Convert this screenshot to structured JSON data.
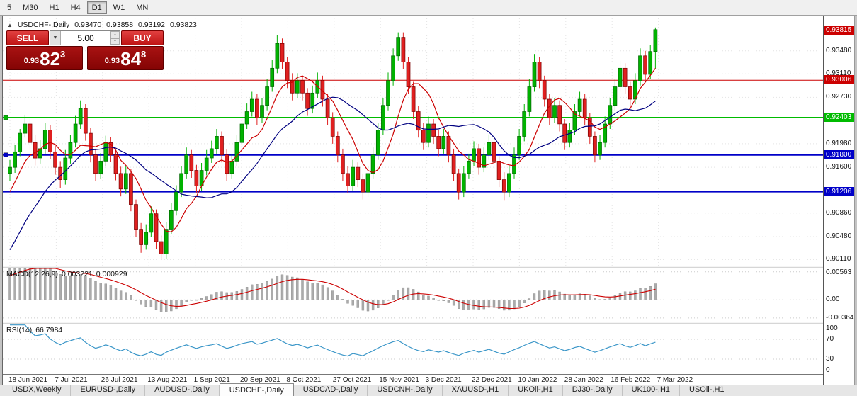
{
  "icons": {
    "collapse": "▲",
    "chevron_down": "▼",
    "spinner_up": "▲",
    "spinner_down": "▼"
  },
  "toolbar": {
    "items": [
      {
        "label": "5",
        "active": false
      },
      {
        "label": "M30",
        "active": false
      },
      {
        "label": "H1",
        "active": false
      },
      {
        "label": "H4",
        "active": false
      },
      {
        "label": "D1",
        "active": true
      },
      {
        "label": "W1",
        "active": false
      },
      {
        "label": "MN",
        "active": false
      }
    ]
  },
  "chart_header": {
    "symbol": "USDCHF-,Daily",
    "open": "0.93470",
    "high": "0.93858",
    "low": "0.93192",
    "close": "0.93823"
  },
  "trade_panel": {
    "sell_label": "SELL",
    "buy_label": "BUY",
    "volume": "5.00",
    "sell_price": {
      "prefix": "0.93",
      "big": "82",
      "sup": "3"
    },
    "buy_price": {
      "prefix": "0.93",
      "big": "84",
      "sup": "8"
    }
  },
  "bottom_tabs": {
    "tabs": [
      {
        "label": "USDX,Weekly",
        "active": false
      },
      {
        "label": "EURUSD-,Daily",
        "active": false
      },
      {
        "label": "AUDUSD-,Daily",
        "active": false
      },
      {
        "label": "USDCHF-,Daily",
        "active": true
      },
      {
        "label": "USDCAD-,Daily",
        "active": false
      },
      {
        "label": "USDCNH-,Daily",
        "active": false
      },
      {
        "label": "XAUUSD-,H1",
        "active": false
      },
      {
        "label": "UKOil-,H1",
        "active": false
      },
      {
        "label": "DJ30-,Daily",
        "active": false
      },
      {
        "label": "UK100-,H1",
        "active": false
      },
      {
        "label": "USOil-,H1",
        "active": false
      }
    ]
  },
  "chart_data": {
    "type": "candlestick",
    "symbol": "USDCHF-",
    "timeframe": "Daily",
    "ohlc_current": {
      "open": 0.9347,
      "high": 0.93858,
      "low": 0.93192,
      "close": 0.93823
    },
    "style": {
      "up_color": "#00b200",
      "up_border": "#006600",
      "down_color": "#e02020",
      "down_border": "#7a0000",
      "grid_color": "#e4e4e4"
    },
    "price_axis": {
      "ylim": [
        0.9,
        0.9405
      ],
      "ticks": [
        0.9348,
        0.9311,
        0.9273,
        0.9198,
        0.916,
        0.9086,
        0.9048,
        0.9011
      ]
    },
    "levels": [
      {
        "price": 0.93815,
        "label": "0.93815",
        "color": "#cc0000",
        "width": 1,
        "edge_marker": false
      },
      {
        "price": 0.93006,
        "label": "0.93006",
        "color": "#cc0000",
        "width": 1,
        "edge_marker": false
      },
      {
        "price": 0.92403,
        "label": "0.92403",
        "color": "#00bb00",
        "width": 2,
        "edge_marker": true
      },
      {
        "price": 0.918,
        "label": "0.91800",
        "color": "#0000c8",
        "width": 2,
        "edge_marker": true
      },
      {
        "price": 0.91206,
        "label": "0.91206",
        "color": "#0000c8",
        "width": 2,
        "edge_marker": false
      }
    ],
    "x_axis_dates": [
      "18 Jun 2021",
      "7 Jul 2021",
      "26 Jul 2021",
      "13 Aug 2021",
      "1 Sep 2021",
      "20 Sep 2021",
      "8 Oct 2021",
      "27 Oct 2021",
      "15 Nov 2021",
      "3 Dec 2021",
      "22 Dec 2021",
      "10 Jan 2022",
      "28 Jan 2022",
      "16 Feb 2022",
      "7 Mar 2022"
    ],
    "moving_averages": [
      {
        "period": 8,
        "color": "#cc0000"
      },
      {
        "period": 20,
        "color": "#000080"
      }
    ],
    "ma_seed_closes": [
      0.89,
      0.8905,
      0.8912,
      0.892,
      0.893,
      0.8942,
      0.8955,
      0.8968,
      0.898,
      0.8992,
      0.9005,
      0.902,
      0.904,
      0.906,
      0.908,
      0.91,
      0.912,
      0.914,
      0.915,
      0.9155
    ],
    "candles": [
      [
        0.915,
        0.9172,
        0.9138,
        0.916
      ],
      [
        0.916,
        0.9196,
        0.9151,
        0.9185
      ],
      [
        0.9185,
        0.9222,
        0.9178,
        0.9215
      ],
      [
        0.9215,
        0.9245,
        0.9208,
        0.923
      ],
      [
        0.923,
        0.9238,
        0.9188,
        0.92
      ],
      [
        0.92,
        0.9212,
        0.9163,
        0.9175
      ],
      [
        0.9175,
        0.9204,
        0.9166,
        0.919
      ],
      [
        0.919,
        0.9232,
        0.9182,
        0.922
      ],
      [
        0.922,
        0.9228,
        0.9173,
        0.9185
      ],
      [
        0.9185,
        0.9195,
        0.9148,
        0.916
      ],
      [
        0.916,
        0.917,
        0.9126,
        0.914
      ],
      [
        0.914,
        0.9188,
        0.9132,
        0.9175
      ],
      [
        0.9175,
        0.9212,
        0.9166,
        0.92
      ],
      [
        0.92,
        0.9243,
        0.9192,
        0.923
      ],
      [
        0.923,
        0.9268,
        0.9222,
        0.9255
      ],
      [
        0.9255,
        0.9262,
        0.9203,
        0.9215
      ],
      [
        0.9215,
        0.9224,
        0.9168,
        0.918
      ],
      [
        0.918,
        0.919,
        0.9138,
        0.915
      ],
      [
        0.915,
        0.9183,
        0.9142,
        0.917
      ],
      [
        0.917,
        0.9211,
        0.9162,
        0.92
      ],
      [
        0.92,
        0.9209,
        0.9169,
        0.918
      ],
      [
        0.918,
        0.9188,
        0.9139,
        0.915
      ],
      [
        0.915,
        0.9161,
        0.9113,
        0.9125
      ],
      [
        0.9125,
        0.9162,
        0.9117,
        0.915
      ],
      [
        0.915,
        0.9157,
        0.9089,
        0.91
      ],
      [
        0.91,
        0.9108,
        0.9047,
        0.906
      ],
      [
        0.906,
        0.907,
        0.9022,
        0.9035
      ],
      [
        0.9035,
        0.9068,
        0.9027,
        0.9055
      ],
      [
        0.9055,
        0.9097,
        0.9047,
        0.9085
      ],
      [
        0.9085,
        0.9092,
        0.9028,
        0.904
      ],
      [
        0.904,
        0.905,
        0.9012,
        0.902
      ],
      [
        0.902,
        0.9072,
        0.9012,
        0.906
      ],
      [
        0.906,
        0.9102,
        0.9052,
        0.909
      ],
      [
        0.909,
        0.9131,
        0.9082,
        0.912
      ],
      [
        0.912,
        0.9162,
        0.9112,
        0.915
      ],
      [
        0.915,
        0.9192,
        0.9142,
        0.918
      ],
      [
        0.918,
        0.9188,
        0.9143,
        0.9155
      ],
      [
        0.9155,
        0.9164,
        0.9118,
        0.913
      ],
      [
        0.913,
        0.9167,
        0.9122,
        0.9155
      ],
      [
        0.9155,
        0.9188,
        0.9147,
        0.9175
      ],
      [
        0.9175,
        0.9203,
        0.9167,
        0.919
      ],
      [
        0.919,
        0.9222,
        0.9182,
        0.921
      ],
      [
        0.921,
        0.9218,
        0.9168,
        0.918
      ],
      [
        0.918,
        0.9189,
        0.9138,
        0.915
      ],
      [
        0.915,
        0.9182,
        0.9142,
        0.917
      ],
      [
        0.917,
        0.9212,
        0.9162,
        0.92
      ],
      [
        0.92,
        0.9242,
        0.9192,
        0.923
      ],
      [
        0.923,
        0.9263,
        0.9222,
        0.925
      ],
      [
        0.925,
        0.9282,
        0.9242,
        0.927
      ],
      [
        0.927,
        0.9278,
        0.9228,
        0.924
      ],
      [
        0.924,
        0.9272,
        0.9232,
        0.926
      ],
      [
        0.926,
        0.9302,
        0.9252,
        0.929
      ],
      [
        0.929,
        0.9333,
        0.9282,
        0.932
      ],
      [
        0.932,
        0.9373,
        0.9312,
        0.936
      ],
      [
        0.936,
        0.9368,
        0.9318,
        0.933
      ],
      [
        0.933,
        0.9338,
        0.9288,
        0.93
      ],
      [
        0.93,
        0.9312,
        0.9268,
        0.928
      ],
      [
        0.928,
        0.9312,
        0.9272,
        0.93
      ],
      [
        0.93,
        0.9308,
        0.9268,
        0.928
      ],
      [
        0.928,
        0.9288,
        0.9243,
        0.9255
      ],
      [
        0.9255,
        0.9292,
        0.9247,
        0.928
      ],
      [
        0.928,
        0.9313,
        0.9272,
        0.93
      ],
      [
        0.93,
        0.9308,
        0.9258,
        0.927
      ],
      [
        0.927,
        0.9278,
        0.9228,
        0.924
      ],
      [
        0.924,
        0.9249,
        0.9198,
        0.921
      ],
      [
        0.921,
        0.9218,
        0.9168,
        0.918
      ],
      [
        0.918,
        0.919,
        0.9138,
        0.915
      ],
      [
        0.915,
        0.9162,
        0.9118,
        0.913
      ],
      [
        0.913,
        0.9172,
        0.9122,
        0.916
      ],
      [
        0.916,
        0.9168,
        0.9128,
        0.914
      ],
      [
        0.914,
        0.915,
        0.9108,
        0.912
      ],
      [
        0.912,
        0.9162,
        0.9112,
        0.915
      ],
      [
        0.915,
        0.9192,
        0.9142,
        0.918
      ],
      [
        0.918,
        0.9232,
        0.9172,
        0.922
      ],
      [
        0.922,
        0.9272,
        0.9212,
        0.926
      ],
      [
        0.926,
        0.9313,
        0.9252,
        0.93
      ],
      [
        0.93,
        0.9352,
        0.9292,
        0.934
      ],
      [
        0.934,
        0.9378,
        0.9332,
        0.937
      ],
      [
        0.937,
        0.9378,
        0.9318,
        0.933
      ],
      [
        0.933,
        0.9338,
        0.9278,
        0.929
      ],
      [
        0.929,
        0.9298,
        0.9238,
        0.925
      ],
      [
        0.925,
        0.9259,
        0.9208,
        0.922
      ],
      [
        0.922,
        0.9232,
        0.9188,
        0.92
      ],
      [
        0.92,
        0.9242,
        0.9192,
        0.923
      ],
      [
        0.923,
        0.9238,
        0.9198,
        0.921
      ],
      [
        0.921,
        0.922,
        0.9178,
        0.919
      ],
      [
        0.919,
        0.9222,
        0.9182,
        0.921
      ],
      [
        0.921,
        0.9218,
        0.9168,
        0.918
      ],
      [
        0.918,
        0.919,
        0.9138,
        0.915
      ],
      [
        0.915,
        0.9158,
        0.9108,
        0.912
      ],
      [
        0.912,
        0.9162,
        0.9112,
        0.915
      ],
      [
        0.915,
        0.9182,
        0.9142,
        0.917
      ],
      [
        0.917,
        0.9202,
        0.9162,
        0.919
      ],
      [
        0.919,
        0.9198,
        0.9148,
        0.916
      ],
      [
        0.916,
        0.9192,
        0.9152,
        0.918
      ],
      [
        0.918,
        0.9213,
        0.9172,
        0.92
      ],
      [
        0.92,
        0.9208,
        0.9158,
        0.917
      ],
      [
        0.917,
        0.9178,
        0.9128,
        0.914
      ],
      [
        0.914,
        0.9152,
        0.9106,
        0.912
      ],
      [
        0.912,
        0.9162,
        0.9112,
        0.915
      ],
      [
        0.915,
        0.9192,
        0.9142,
        0.918
      ],
      [
        0.918,
        0.9222,
        0.9172,
        0.921
      ],
      [
        0.921,
        0.9262,
        0.9202,
        0.925
      ],
      [
        0.925,
        0.9302,
        0.9242,
        0.929
      ],
      [
        0.929,
        0.9343,
        0.9282,
        0.933
      ],
      [
        0.933,
        0.9338,
        0.9288,
        0.93
      ],
      [
        0.93,
        0.9308,
        0.9258,
        0.927
      ],
      [
        0.927,
        0.9278,
        0.9228,
        0.924
      ],
      [
        0.924,
        0.9272,
        0.9232,
        0.926
      ],
      [
        0.926,
        0.9268,
        0.9218,
        0.923
      ],
      [
        0.923,
        0.9238,
        0.9188,
        0.92
      ],
      [
        0.92,
        0.9232,
        0.9192,
        0.922
      ],
      [
        0.922,
        0.9262,
        0.9212,
        0.925
      ],
      [
        0.925,
        0.9282,
        0.9242,
        0.927
      ],
      [
        0.927,
        0.9278,
        0.9228,
        0.924
      ],
      [
        0.924,
        0.9248,
        0.9198,
        0.921
      ],
      [
        0.921,
        0.9218,
        0.9168,
        0.918
      ],
      [
        0.918,
        0.9212,
        0.9172,
        0.92
      ],
      [
        0.92,
        0.9242,
        0.9192,
        0.923
      ],
      [
        0.923,
        0.9272,
        0.9222,
        0.926
      ],
      [
        0.926,
        0.9302,
        0.9252,
        0.929
      ],
      [
        0.929,
        0.9332,
        0.9282,
        0.932
      ],
      [
        0.932,
        0.9328,
        0.9278,
        0.929
      ],
      [
        0.929,
        0.9298,
        0.9258,
        0.927
      ],
      [
        0.927,
        0.9312,
        0.9262,
        0.93
      ],
      [
        0.93,
        0.9352,
        0.9292,
        0.934
      ],
      [
        0.934,
        0.9348,
        0.9298,
        0.931
      ],
      [
        0.931,
        0.9358,
        0.9302,
        0.9347
      ],
      [
        0.9347,
        0.93858,
        0.93192,
        0.93823
      ]
    ],
    "macd": {
      "name": "MACD(12,26,9)",
      "value": "0.003221",
      "signal": "0.000929",
      "params": [
        12,
        26,
        9
      ],
      "ylim": [
        -0.0045,
        0.0063
      ],
      "axis_ticks": [
        {
          "value": 0.00563,
          "label": "0.00563"
        },
        {
          "value": 0,
          "label": "0.00"
        },
        {
          "value": -0.00364,
          "label": "-0.00364"
        }
      ],
      "hist_color": "#ababab",
      "signal_color": "#cc0000"
    },
    "rsi": {
      "name": "RSI(14)",
      "value": "66.7984",
      "period": 14,
      "ylim": [
        0,
        100
      ],
      "level_lines": [
        70,
        30
      ],
      "axis_ticks": [
        {
          "value": 100,
          "label": "100"
        },
        {
          "value": 70,
          "label": "70"
        },
        {
          "value": 30,
          "label": "30"
        },
        {
          "value": 0,
          "label": "0"
        }
      ],
      "color": "#3a96c8"
    }
  }
}
